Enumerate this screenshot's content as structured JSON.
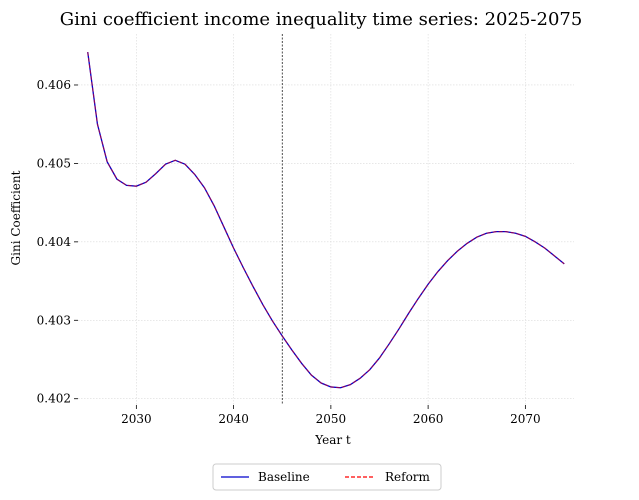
{
  "chart_data": {
    "type": "line",
    "title": "Gini coefficient income inequality time series: 2025-2075",
    "xlabel": "Year t",
    "ylabel": "Gini Coefficient",
    "xlim": [
      2024,
      2075
    ],
    "ylim": [
      0.40192,
      0.40665
    ],
    "xticks": [
      2030,
      2040,
      2050,
      2060,
      2070
    ],
    "yticks": [
      0.402,
      0.403,
      0.404,
      0.405,
      0.406
    ],
    "grid": true,
    "legend_position": "bottom-center",
    "reference_line": {
      "x": 2045,
      "style": "dashed",
      "color": "#000000"
    },
    "x": [
      2025,
      2026,
      2027,
      2028,
      2029,
      2030,
      2031,
      2032,
      2033,
      2034,
      2035,
      2036,
      2037,
      2038,
      2039,
      2040,
      2041,
      2042,
      2043,
      2044,
      2045,
      2046,
      2047,
      2048,
      2049,
      2050,
      2051,
      2052,
      2053,
      2054,
      2055,
      2056,
      2057,
      2058,
      2059,
      2060,
      2061,
      2062,
      2063,
      2064,
      2065,
      2066,
      2067,
      2068,
      2069,
      2070,
      2071,
      2072,
      2073,
      2074
    ],
    "series": [
      {
        "name": "Baseline",
        "color": "#0000cc",
        "style": "solid",
        "values": [
          0.40642,
          0.4055,
          0.40502,
          0.4048,
          0.40472,
          0.40471,
          0.40476,
          0.40487,
          0.40499,
          0.40504,
          0.40499,
          0.40486,
          0.40469,
          0.40446,
          0.40419,
          0.40392,
          0.40367,
          0.40343,
          0.4032,
          0.40299,
          0.4028,
          0.40262,
          0.40245,
          0.4023,
          0.4022,
          0.40215,
          0.40214,
          0.40218,
          0.40226,
          0.40237,
          0.40252,
          0.4027,
          0.40289,
          0.40309,
          0.40328,
          0.40346,
          0.40362,
          0.40376,
          0.40388,
          0.40398,
          0.40406,
          0.40411,
          0.40413,
          0.40413,
          0.40411,
          0.40407,
          0.404,
          0.40392,
          0.40382,
          0.40372
        ]
      },
      {
        "name": "Reform",
        "color": "#ff0000",
        "style": "dashed",
        "values": [
          0.40642,
          0.4055,
          0.40502,
          0.4048,
          0.40472,
          0.40471,
          0.40476,
          0.40487,
          0.40499,
          0.40504,
          0.40499,
          0.40486,
          0.40469,
          0.40446,
          0.40419,
          0.40392,
          0.40367,
          0.40343,
          0.4032,
          0.40299,
          0.4028,
          0.40262,
          0.40245,
          0.4023,
          0.4022,
          0.40215,
          0.40214,
          0.40218,
          0.40226,
          0.40237,
          0.40252,
          0.4027,
          0.40289,
          0.40309,
          0.40328,
          0.40346,
          0.40362,
          0.40376,
          0.40388,
          0.40398,
          0.40406,
          0.40411,
          0.40413,
          0.40413,
          0.40411,
          0.40407,
          0.404,
          0.40392,
          0.40382,
          0.40372
        ]
      }
    ]
  }
}
